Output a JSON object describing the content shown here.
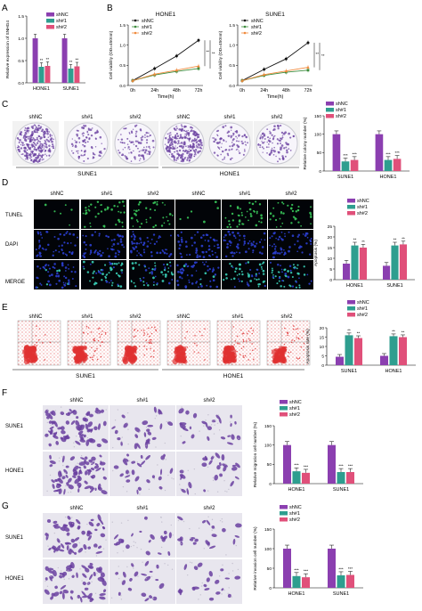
{
  "legend": {
    "c": "shNC",
    "a": "sh#1",
    "b": "sh#2"
  },
  "colors": {
    "shNC": "#8B3FB0",
    "sh1": "#2E9E8F",
    "sh2": "#E0507A",
    "line_sh1": "#3C8C3C",
    "line_sh2": "#F08A3C",
    "line_shNC": "#111111",
    "purple_stain": "#6A3FA0",
    "fluor_green": "#39C65A",
    "flow_red": "#E03030"
  },
  "panels": {
    "A": {
      "letter": "A",
      "ylabel": "Relative expression of SNHG4",
      "yticks": [
        "0.0",
        "0.5",
        "1.0",
        "1.5"
      ],
      "groups": [
        "HONE1",
        "SUNE1"
      ],
      "values": [
        [
          1.0,
          0.36,
          0.38
        ],
        [
          1.0,
          0.32,
          0.37
        ]
      ],
      "ymax": 1.5,
      "sig": "**"
    },
    "B": {
      "letter": "B",
      "plots": [
        {
          "title": "HONE1",
          "ylabel": "Cell viability (OD=450nm)",
          "xlabel": "Time(h)",
          "xticks": [
            "0h",
            "24h",
            "48h",
            "72h"
          ],
          "yticks": [
            "0.0",
            "0.5",
            "1.0",
            "1.5"
          ],
          "series": [
            {
              "name": "shNC",
              "values": [
                0.12,
                0.42,
                0.73,
                1.12
              ]
            },
            {
              "name": "sh#1",
              "values": [
                0.12,
                0.26,
                0.35,
                0.42
              ]
            },
            {
              "name": "sh#2",
              "values": [
                0.12,
                0.28,
                0.38,
                0.48
              ]
            }
          ],
          "sig": [
            "**",
            "**"
          ]
        },
        {
          "title": "SUNE1",
          "ylabel": "Cell viability (OD=450nm)",
          "xlabel": "Time(h)",
          "xticks": [
            "0h",
            "24h",
            "48h",
            "72h"
          ],
          "yticks": [
            "0.0",
            "0.5",
            "1.0",
            "1.5"
          ],
          "series": [
            {
              "name": "shNC",
              "values": [
                0.12,
                0.4,
                0.66,
                1.06
              ]
            },
            {
              "name": "sh#1",
              "values": [
                0.12,
                0.25,
                0.33,
                0.38
              ]
            },
            {
              "name": "sh#2",
              "values": [
                0.12,
                0.27,
                0.36,
                0.45
              ]
            }
          ],
          "sig": [
            "**",
            "**"
          ]
        }
      ]
    },
    "C": {
      "letter": "C",
      "col_labels": [
        "shNC",
        "sh#1",
        "sh#2",
        "shNC",
        "sh#1",
        "sh#2"
      ],
      "group_labels": [
        "SUNE1",
        "HONE1"
      ],
      "densities": [
        0.95,
        0.25,
        0.3,
        0.95,
        0.28,
        0.32
      ],
      "bar": {
        "ylabel": "Relative colony number (%)",
        "yticks": [
          "0",
          "50",
          "100",
          "150"
        ],
        "groups": [
          "SUNE1",
          "HONE1"
        ],
        "values": [
          [
            100,
            26,
            30
          ],
          [
            100,
            30,
            33
          ]
        ],
        "ymax": 150,
        "sig": "***"
      }
    },
    "D": {
      "letter": "D",
      "col_labels": [
        "shNC",
        "sh#1",
        "sh#2",
        "shNC",
        "sh#1",
        "sh#2"
      ],
      "row_labels": [
        "TUNEL",
        "DAPI",
        "MERGE"
      ],
      "bar": {
        "ylabel": "Apoptosis (%)",
        "yticks": [
          "0",
          "5",
          "10",
          "15",
          "20",
          "25"
        ],
        "groups": [
          "HONE1",
          "SUNE1"
        ],
        "values": [
          [
            7.5,
            16,
            15
          ],
          [
            6.5,
            16,
            16.5
          ]
        ],
        "ymax": 25,
        "sig": "**"
      }
    },
    "E": {
      "letter": "E",
      "col_labels": [
        "shNC",
        "sh#1",
        "sh#2",
        "shNC",
        "sh#1",
        "sh#2"
      ],
      "group_labels": [
        "SUNE1",
        "HONE1"
      ],
      "bar": {
        "ylabel": "Apoptosis rate (%)",
        "yticks": [
          "0",
          "5",
          "10",
          "15",
          "20"
        ],
        "groups": [
          "SUNE1",
          "HONE1"
        ],
        "values": [
          [
            4.5,
            16,
            14.5
          ],
          [
            5,
            15.5,
            15
          ]
        ],
        "ymax": 20,
        "sig": "**"
      }
    },
    "F": {
      "letter": "F",
      "col_labels": [
        "shNC",
        "sh#1",
        "sh#2"
      ],
      "row_labels": [
        "SUNE1",
        "HONE1"
      ],
      "bar": {
        "ylabel": "Relative migration cell number (%)",
        "yticks": [
          "0",
          "50",
          "100",
          "150"
        ],
        "groups": [
          "HONE1",
          "SUNE1"
        ],
        "values": [
          [
            100,
            32,
            28
          ],
          [
            100,
            30,
            30
          ]
        ],
        "ymax": 150,
        "sig": "***"
      }
    },
    "G": {
      "letter": "G",
      "col_labels": [
        "shNC",
        "sh#1",
        "sh#2"
      ],
      "row_labels": [
        "SUNE1",
        "HONE1"
      ],
      "bar": {
        "ylabel": "Relative invasion cell number (%)",
        "yticks": [
          "0",
          "50",
          "100",
          "150"
        ],
        "groups": [
          "HONE1",
          "SUNE1"
        ],
        "values": [
          [
            100,
            30,
            27
          ],
          [
            100,
            32,
            33
          ]
        ],
        "ymax": 150,
        "sig": "***"
      }
    }
  }
}
